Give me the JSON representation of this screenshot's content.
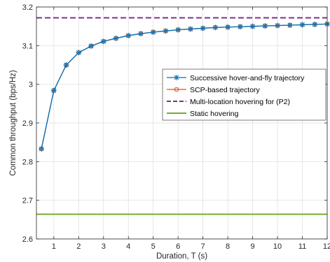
{
  "chart_data": {
    "type": "line",
    "xlabel": "Duration, T (s)",
    "ylabel": "Common throughput (bps/Hz)",
    "xlim": [
      0.3,
      12
    ],
    "ylim": [
      2.6,
      3.2
    ],
    "xticks": [
      1,
      2,
      3,
      4,
      5,
      6,
      7,
      8,
      9,
      10,
      11,
      12
    ],
    "yticks": [
      2.6,
      2.7,
      2.8,
      2.9,
      3.0,
      3.1,
      3.2
    ],
    "ytick_labels": [
      "2.6",
      "2.7",
      "2.8",
      "2.9",
      "3",
      "3.1",
      "3.2"
    ],
    "grid": true,
    "legend_position": "right",
    "x": [
      0.5,
      1,
      1.5,
      2,
      2.5,
      3,
      3.5,
      4,
      4.5,
      5,
      5.5,
      6,
      6.5,
      7,
      7.5,
      8,
      8.5,
      9,
      9.5,
      10,
      10.5,
      11,
      11.5,
      12
    ],
    "series": [
      {
        "name": "Successive hover-and-fly trajectory",
        "color": "#0072bd",
        "marker": "asterisk",
        "style": "solid",
        "values": [
          2.833,
          2.984,
          3.05,
          3.082,
          3.099,
          3.111,
          3.119,
          3.126,
          3.131,
          3.135,
          3.138,
          3.141,
          3.143,
          3.145,
          3.147,
          3.148,
          3.149,
          3.15,
          3.151,
          3.152,
          3.153,
          3.154,
          3.155,
          3.156
        ]
      },
      {
        "name": "SCP-based trajectory",
        "color": "#d95319",
        "marker": "circle",
        "style": "solid",
        "values": [
          2.833,
          2.984,
          3.05,
          3.082,
          3.099,
          3.111,
          3.119,
          3.126,
          3.131,
          3.135,
          3.138,
          3.141,
          3.143,
          3.145,
          3.147,
          3.148,
          3.149,
          3.15,
          3.151,
          3.152,
          3.153,
          3.154,
          3.155,
          3.156
        ]
      },
      {
        "name": "Multi-location hovering for (P2)",
        "color": "#7e2f8e",
        "marker": "none",
        "style": "dashed",
        "constant": 3.172
      },
      {
        "name": "Static hovering",
        "color": "#77ac30",
        "marker": "none",
        "style": "solid",
        "constant": 2.664
      }
    ]
  }
}
